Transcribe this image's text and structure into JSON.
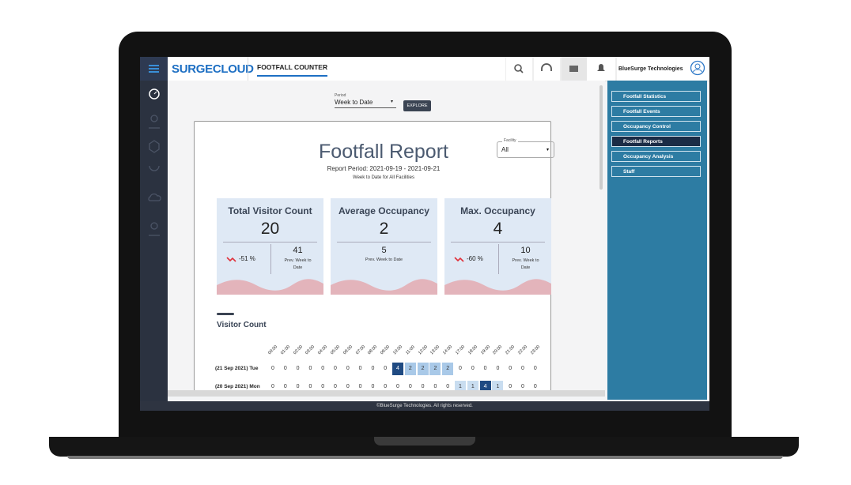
{
  "topbar": {
    "brand": "SURGECLOUD",
    "tab": "FOOTFALL COUNTER",
    "user": "BlueSurge Technologies"
  },
  "filter": {
    "label": "Period",
    "value": "Week to Date",
    "button": "EXPLORE"
  },
  "report": {
    "title": "Footfall Report",
    "period": "Report Period: 2021-09-19 - 2021-09-21",
    "subtitle": "Week to Date for All Facilities",
    "facility_label": "Facility",
    "facility_value": "All"
  },
  "kpis": [
    {
      "title": "Total Visitor Count",
      "value": 20,
      "change": "-51 %",
      "prev": 41,
      "prev_label": "Prev. Week to Date"
    },
    {
      "title": "Average Occupancy",
      "value": 2,
      "prev": 5,
      "prev_label": "Prev. Week to Date"
    },
    {
      "title": "Max. Occupancy",
      "value": 4,
      "change": "-60 %",
      "prev": 10,
      "prev_label": "Prev. Week to Date"
    }
  ],
  "visitor_count": {
    "title": "Visitor Count",
    "hours": [
      "00:00",
      "01:00",
      "02:00",
      "03:00",
      "04:00",
      "05:00",
      "06:00",
      "07:00",
      "08:00",
      "09:00",
      "10:00",
      "11:00",
      "12:00",
      "13:00",
      "14:00",
      "17:00",
      "18:00",
      "19:00",
      "20:00",
      "21:00",
      "22:00",
      "23:00"
    ],
    "rows": [
      {
        "label": "(21 Sep 2021) Tue",
        "values": [
          0,
          0,
          0,
          0,
          0,
          0,
          0,
          0,
          0,
          0,
          4,
          2,
          2,
          2,
          2,
          0,
          0,
          0,
          0,
          0,
          0,
          0
        ]
      },
      {
        "label": "(20 Sep 2021) Mon",
        "values": [
          0,
          0,
          0,
          0,
          0,
          0,
          0,
          0,
          0,
          0,
          0,
          0,
          0,
          0,
          0,
          1,
          1,
          4,
          1,
          0,
          0,
          0
        ]
      }
    ]
  },
  "nav": [
    "Footfall Statistics",
    "Footfall Events",
    "Occupancy Control",
    "Footfall Reports",
    "Occupancy Analysis",
    "Staff"
  ],
  "nav_active": 3,
  "footer": "©BlueSurge Technologies. All rights reserved."
}
